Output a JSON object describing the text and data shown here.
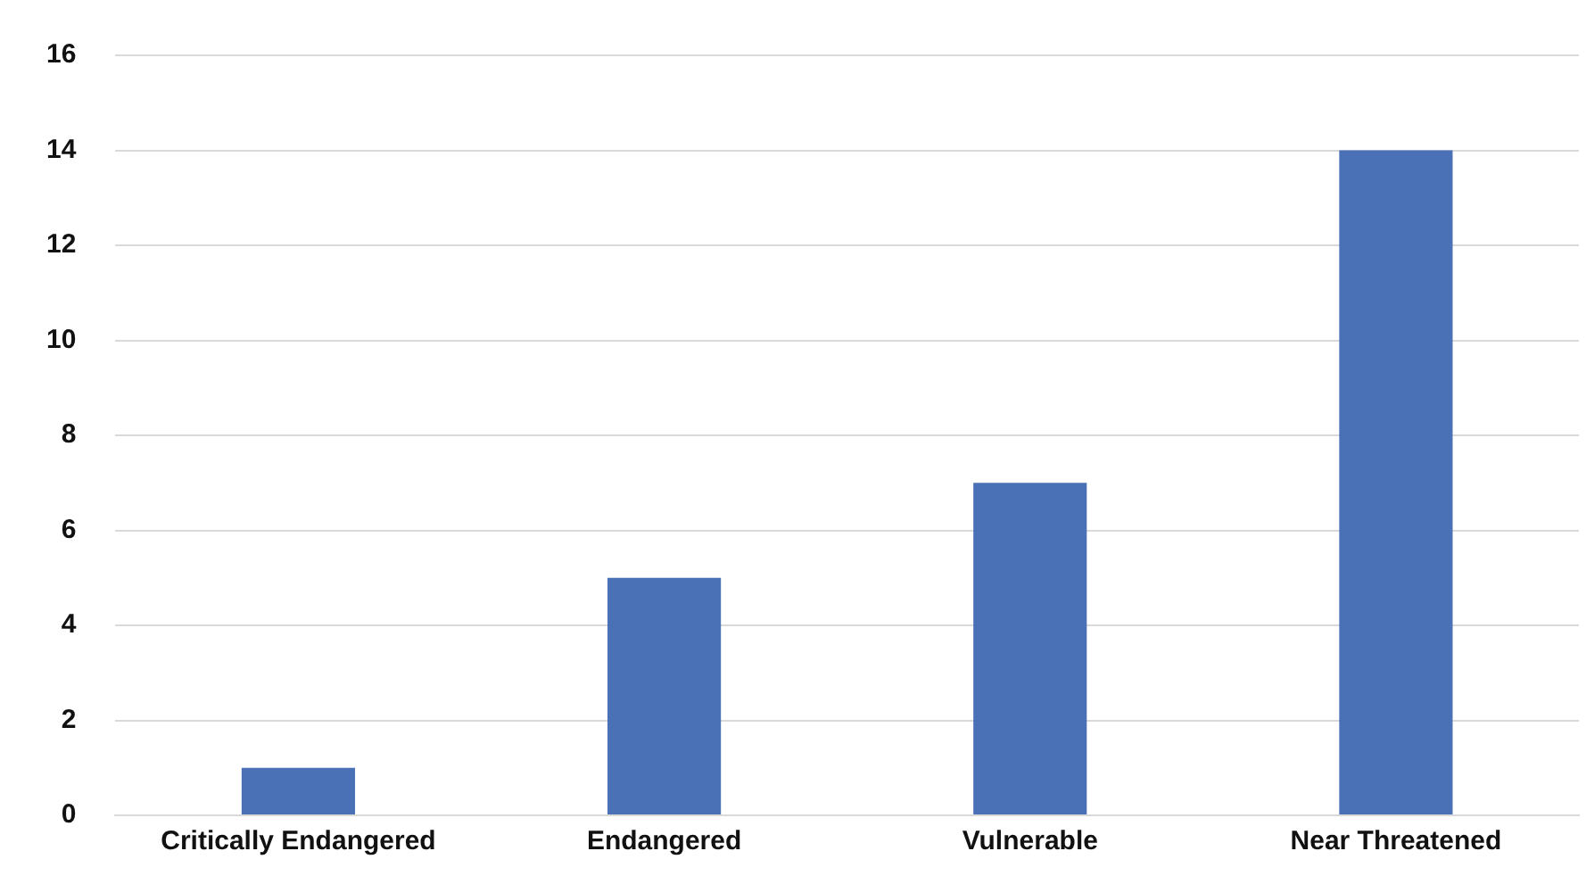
{
  "chart_data": {
    "type": "bar",
    "categories": [
      "Critically Endangered",
      "Endangered",
      "Vulnerable",
      "Near Threatened"
    ],
    "values": [
      1,
      5,
      7,
      14
    ],
    "color": "#4a71b6",
    "ylim": [
      0,
      16
    ],
    "yticks": [
      0,
      2,
      4,
      6,
      8,
      10,
      12,
      14,
      16
    ],
    "grid": "y"
  }
}
